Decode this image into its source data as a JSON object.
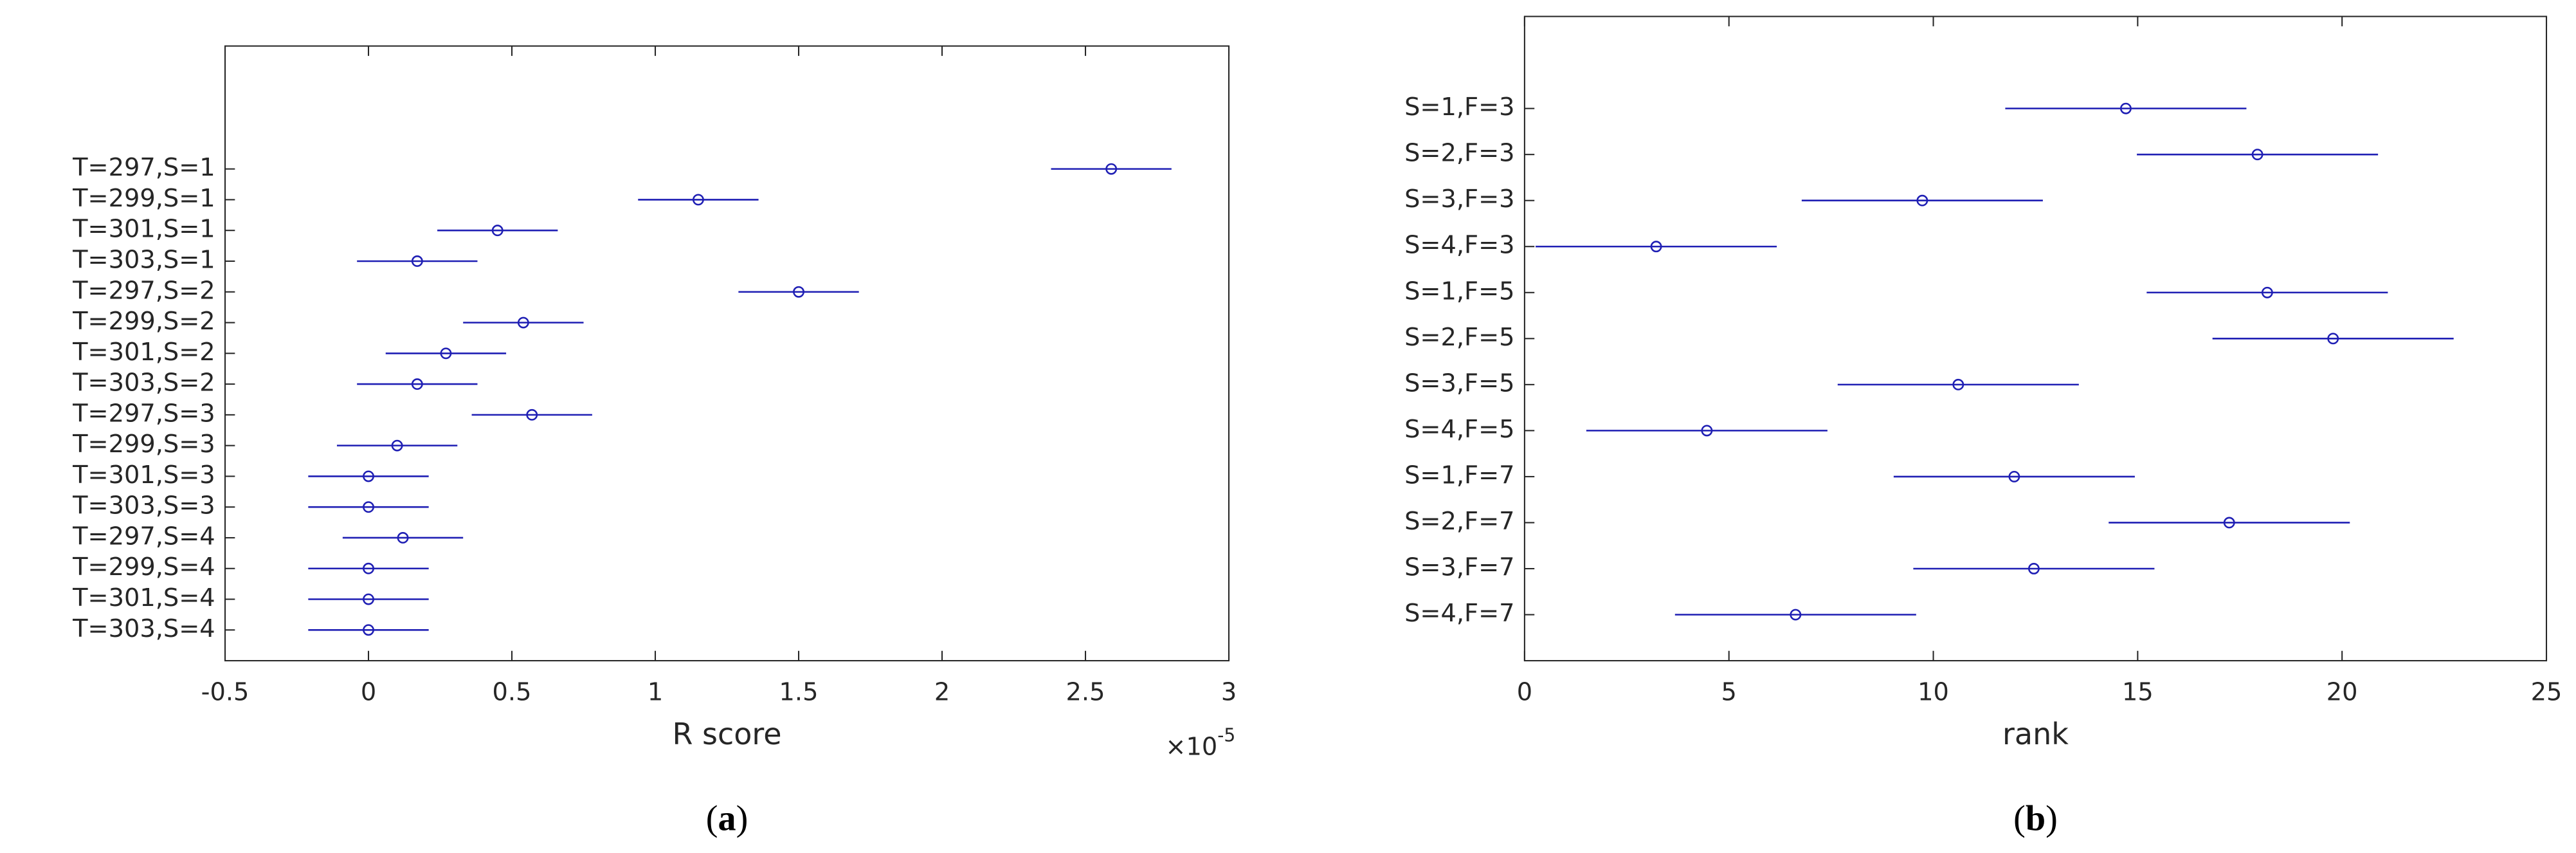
{
  "chart_data": [
    {
      "type": "errorbar",
      "caption": "(a)",
      "xlabel": "R score",
      "x_exponent_base": "×10",
      "x_exponent": -5,
      "color": "#1f1fb4",
      "categories": [
        "T=297,S=1",
        "T=299,S=1",
        "T=301,S=1",
        "T=303,S=1",
        "T=297,S=2",
        "T=299,S=2",
        "T=301,S=2",
        "T=303,S=2",
        "T=297,S=3",
        "T=299,S=3",
        "T=301,S=3",
        "T=303,S=3",
        "T=297,S=4",
        "T=299,S=4",
        "T=301,S=4",
        "T=303,S=4"
      ],
      "values": [
        2.59,
        1.15,
        0.45,
        0.17,
        1.5,
        0.54,
        0.27,
        0.17,
        0.57,
        0.1,
        0,
        0,
        0.12,
        0,
        0,
        0
      ],
      "errors": [
        0.21,
        0.21,
        0.21,
        0.21,
        0.21,
        0.21,
        0.21,
        0.21,
        0.21,
        0.21,
        0.21,
        0.21,
        0.21,
        0.21,
        0.21,
        0.21
      ],
      "xlim": [
        -0.5,
        3
      ],
      "xticks": [
        -0.5,
        0,
        0.5,
        1,
        1.5,
        2,
        2.5,
        3
      ]
    },
    {
      "type": "errorbar",
      "caption": "(b)",
      "xlabel": "rank",
      "color": "#1f1fb4",
      "categories": [
        "S=1,F=3",
        "S=2,F=3",
        "S=3,F=3",
        "S=4,F=3",
        "S=1,F=5",
        "S=2,F=5",
        "S=3,F=5",
        "S=4,F=5",
        "S=1,F=7",
        "S=2,F=7",
        "S=3,F=7",
        "S=4,F=7"
      ],
      "values": [
        14.71,
        17.93,
        9.73,
        3.22,
        18.17,
        19.78,
        10.61,
        4.46,
        11.98,
        17.24,
        12.46,
        6.63
      ],
      "errors": [
        2.95,
        2.95,
        2.95,
        2.95,
        2.95,
        2.95,
        2.95,
        2.95,
        2.95,
        2.95,
        2.95,
        2.95
      ],
      "xlim": [
        0,
        25
      ],
      "xticks": [
        0,
        5,
        10,
        15,
        20,
        25
      ]
    }
  ]
}
